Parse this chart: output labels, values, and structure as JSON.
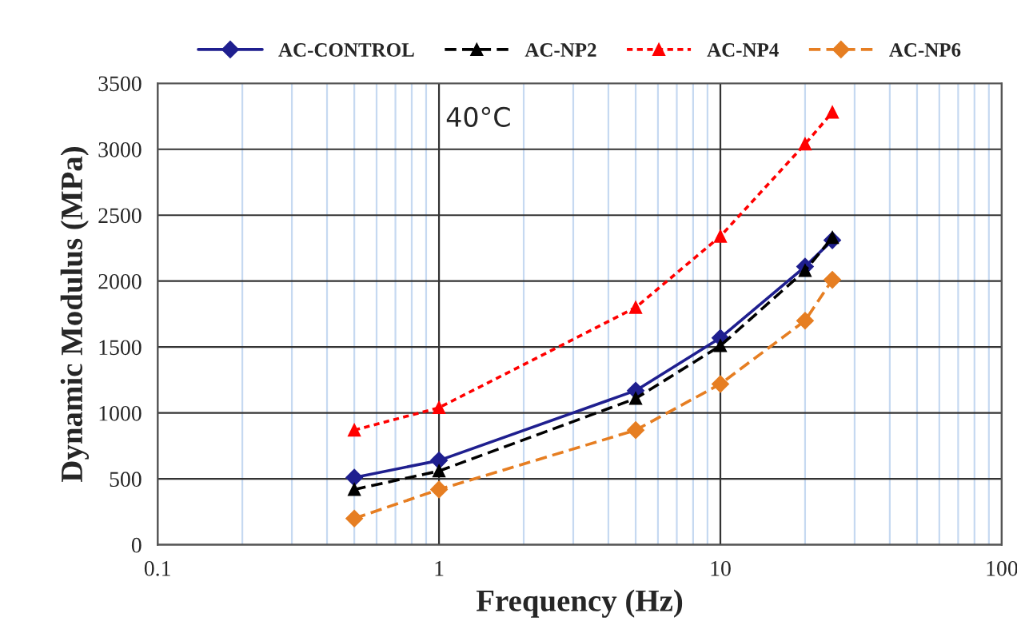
{
  "chart_data": {
    "type": "line",
    "xlabel": "Frequency (Hz)",
    "ylabel": "Dynamic Modulus (MPa)",
    "x": [
      0.5,
      1,
      5,
      10,
      20,
      25
    ],
    "series": [
      {
        "name": "AC-CONTROL",
        "color": "#1f1f8f",
        "marker": "diamond",
        "line_style": "solid",
        "values": [
          510,
          640,
          1170,
          1570,
          2110,
          2310
        ]
      },
      {
        "name": "AC-NP2",
        "color": "#000000",
        "marker": "triangle",
        "line_style": "dashed",
        "values": [
          420,
          560,
          1110,
          1510,
          2080,
          2330
        ]
      },
      {
        "name": "AC-NP4",
        "color": "#ff0000",
        "marker": "triangle",
        "line_style": "dotted",
        "values": [
          870,
          1040,
          1800,
          2340,
          3040,
          3280
        ]
      },
      {
        "name": "AC-NP6",
        "color": "#e67e22",
        "marker": "diamond",
        "line_style": "dashed",
        "values": [
          200,
          420,
          870,
          1220,
          1700,
          2010
        ]
      }
    ],
    "log": "x",
    "xlim": [
      0.1,
      100
    ],
    "xticks": [
      0.1,
      {
        "value": 0.2,
        "label": null
      },
      {
        "value": 0.3,
        "label": null
      },
      {
        "value": 0.4,
        "label": null
      },
      {
        "value": 0.5,
        "label": null
      },
      {
        "value": 0.6,
        "label": null
      },
      {
        "value": 0.7,
        "label": null
      },
      {
        "value": 0.8,
        "label": null
      },
      {
        "value": 0.9,
        "label": null
      },
      1,
      {
        "value": 2,
        "label": null
      },
      {
        "value": 3,
        "label": null
      },
      {
        "value": 4,
        "label": null
      },
      {
        "value": 5,
        "label": null
      },
      {
        "value": 6,
        "label": null
      },
      {
        "value": 7,
        "label": null
      },
      {
        "value": 8,
        "label": null
      },
      {
        "value": 9,
        "label": null
      },
      10,
      {
        "value": 20,
        "label": null
      },
      {
        "value": 30,
        "label": null
      },
      {
        "value": 40,
        "label": null
      },
      {
        "value": 50,
        "label": null
      },
      {
        "value": 60,
        "label": null
      },
      {
        "value": 70,
        "label": null
      },
      {
        "value": 80,
        "label": null
      },
      {
        "value": 90,
        "label": null
      },
      100
    ],
    "ylim": [
      0,
      3500
    ],
    "yticks": [
      0,
      500,
      1000,
      1500,
      2000,
      2500,
      3000,
      3500
    ],
    "grid": true,
    "legend": "top",
    "annotations": [
      "40°C"
    ]
  }
}
